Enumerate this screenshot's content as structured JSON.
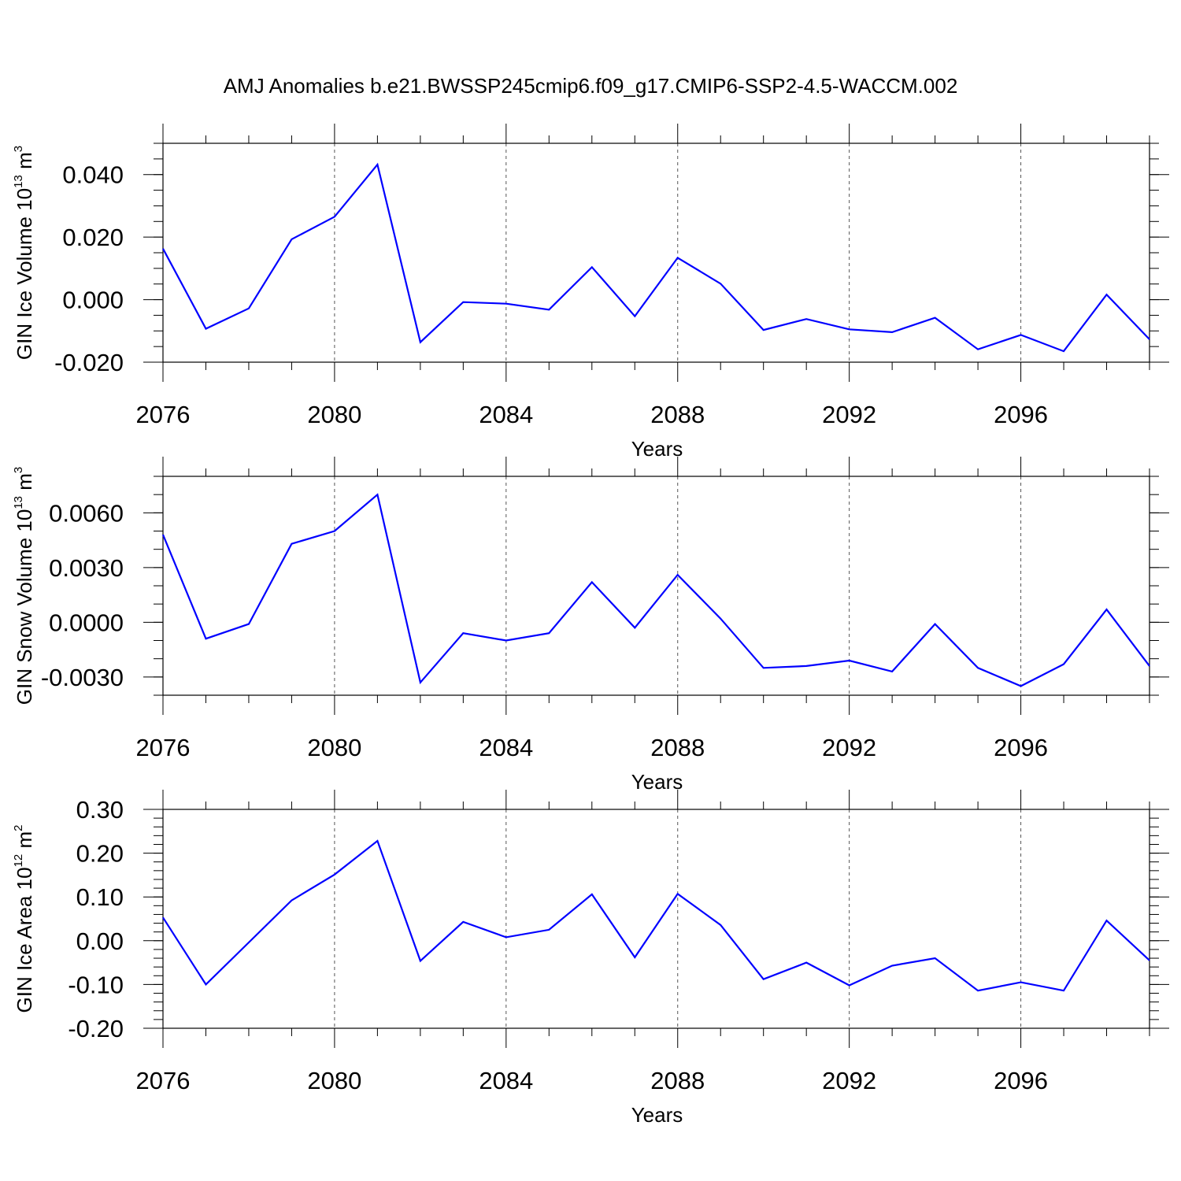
{
  "title": "AMJ Anomalies b.e21.BWSSP245cmip6.f09_g17.CMIP6-SSP2-4.5-WACCM.002",
  "colors": {
    "line": "#0000ff",
    "axis": "#000000",
    "grid": "#555555"
  },
  "chart_data": [
    {
      "type": "line",
      "ylabel": {
        "text": "GIN Ice Volume 10",
        "sup1": "13",
        "text2": " m",
        "sup2": "3"
      },
      "xlabel": "Years",
      "xlim": [
        2076,
        2099
      ],
      "ylim": [
        -0.02,
        0.05
      ],
      "xticks": [
        2076,
        2080,
        2084,
        2088,
        2092,
        2096
      ],
      "xtick_labels": [
        "2076",
        "2080",
        "2084",
        "2088",
        "2092",
        "2096"
      ],
      "yticks": [
        -0.02,
        0.0,
        0.02,
        0.04
      ],
      "ytick_labels": [
        "-0.020",
        "0.000",
        "0.020",
        "0.040"
      ],
      "yminor_step": 0.005,
      "x": [
        2076,
        2077,
        2078,
        2079,
        2080,
        2081,
        2082,
        2083,
        2084,
        2085,
        2086,
        2087,
        2088,
        2089,
        2090,
        2091,
        2092,
        2093,
        2094,
        2095,
        2096,
        2097,
        2098,
        2099
      ],
      "values": [
        0.0163,
        -0.0093,
        -0.0028,
        0.0193,
        0.0265,
        0.0432,
        -0.0136,
        -0.0008,
        -0.0013,
        -0.0032,
        0.0104,
        -0.0053,
        0.0134,
        0.0051,
        -0.0097,
        -0.0062,
        -0.0095,
        -0.0104,
        -0.0058,
        -0.0159,
        -0.0113,
        -0.0165,
        0.0016,
        -0.0127
      ]
    },
    {
      "type": "line",
      "ylabel": {
        "text": "GIN Snow Volume 10",
        "sup1": "13",
        "text2": " m",
        "sup2": "3"
      },
      "xlabel": "Years",
      "xlim": [
        2076,
        2099
      ],
      "ylim": [
        -0.004,
        0.008
      ],
      "xticks": [
        2076,
        2080,
        2084,
        2088,
        2092,
        2096
      ],
      "xtick_labels": [
        "2076",
        "2080",
        "2084",
        "2088",
        "2092",
        "2096"
      ],
      "yticks": [
        -0.003,
        0.0,
        0.003,
        0.006
      ],
      "ytick_labels": [
        "-0.0030",
        "0.0000",
        "0.0030",
        "0.0060"
      ],
      "yminor_step": 0.001,
      "x": [
        2076,
        2077,
        2078,
        2079,
        2080,
        2081,
        2082,
        2083,
        2084,
        2085,
        2086,
        2087,
        2088,
        2089,
        2090,
        2091,
        2092,
        2093,
        2094,
        2095,
        2096,
        2097,
        2098,
        2099
      ],
      "values": [
        0.0048,
        -0.0009,
        -0.0001,
        0.0043,
        0.005,
        0.007,
        -0.0033,
        -0.0006,
        -0.001,
        -0.0006,
        0.0022,
        -0.0003,
        0.0026,
        0.0002,
        -0.0025,
        -0.0024,
        -0.0021,
        -0.0027,
        -0.0001,
        -0.0025,
        -0.0035,
        -0.0023,
        0.0007,
        -0.0024
      ]
    },
    {
      "type": "line",
      "ylabel": {
        "text": "GIN Ice Area 10",
        "sup1": "12",
        "text2": " m",
        "sup2": "2"
      },
      "xlabel": "Years",
      "xlim": [
        2076,
        2099
      ],
      "ylim": [
        -0.2,
        0.3
      ],
      "xticks": [
        2076,
        2080,
        2084,
        2088,
        2092,
        2096
      ],
      "xtick_labels": [
        "2076",
        "2080",
        "2084",
        "2088",
        "2092",
        "2096"
      ],
      "yticks": [
        -0.2,
        -0.1,
        0.0,
        0.1,
        0.2,
        0.3
      ],
      "ytick_labels": [
        "-0.20",
        "-0.10",
        "0.00",
        "0.10",
        "0.20",
        "0.30"
      ],
      "yminor_step": 0.02,
      "x": [
        2076,
        2077,
        2078,
        2079,
        2080,
        2081,
        2082,
        2083,
        2084,
        2085,
        2086,
        2087,
        2088,
        2089,
        2090,
        2091,
        2092,
        2093,
        2094,
        2095,
        2096,
        2097,
        2098,
        2099
      ],
      "values": [
        0.053,
        -0.1,
        -0.004,
        0.092,
        0.151,
        0.228,
        -0.046,
        0.043,
        0.008,
        0.025,
        0.106,
        -0.038,
        0.107,
        0.036,
        -0.088,
        -0.05,
        -0.102,
        -0.057,
        -0.04,
        -0.114,
        -0.095,
        -0.114,
        0.046,
        -0.045
      ]
    }
  ]
}
